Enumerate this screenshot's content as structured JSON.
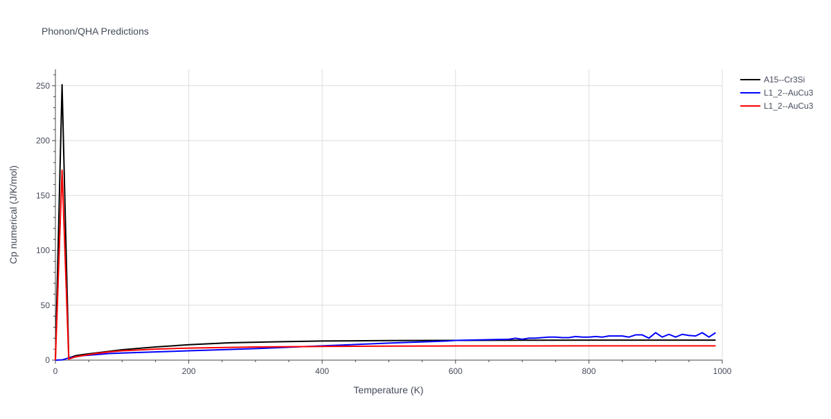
{
  "chart_data": {
    "type": "line",
    "title": "Phonon/QHA Predictions",
    "xlabel": "Temperature (K)",
    "ylabel": "Cp numerical (J/K/mol)",
    "xlim": [
      0,
      1000
    ],
    "ylim": [
      0,
      265
    ],
    "xticks": [
      0,
      200,
      400,
      600,
      800,
      1000
    ],
    "yticks": [
      0,
      50,
      100,
      150,
      200,
      250
    ],
    "grid": true,
    "legend_position": "top-right",
    "colors": {
      "grid": "#dddddd",
      "axis_text": "#444a5a",
      "title_text": "#444a5a"
    },
    "series": [
      {
        "name": "A15--Cr3Si",
        "color": "#000000",
        "x": [
          0,
          10,
          20,
          30,
          40,
          60,
          80,
          100,
          150,
          200,
          260,
          340,
          400,
          500,
          600,
          700,
          800,
          900,
          990
        ],
        "y": [
          0,
          251,
          2,
          4,
          5,
          6.5,
          8,
          9.5,
          12,
          14,
          15.8,
          16.8,
          17.4,
          17.8,
          18,
          18.1,
          18.2,
          18.2,
          18.2
        ]
      },
      {
        "name": "L1_2--AuCu3",
        "color": "#0000ff",
        "x": [
          0,
          10,
          20,
          30,
          40,
          60,
          80,
          100,
          150,
          200,
          300,
          400,
          500,
          590,
          600,
          680,
          690,
          700,
          710,
          720,
          730,
          740,
          750,
          760,
          770,
          780,
          790,
          800,
          810,
          820,
          830,
          840,
          850,
          860,
          870,
          880,
          890,
          900,
          910,
          920,
          930,
          940,
          950,
          960,
          970,
          980,
          990
        ],
        "y": [
          0,
          0.2,
          2,
          3,
          4,
          5,
          6,
          6.5,
          7.5,
          8.5,
          10.5,
          13,
          15.5,
          17.5,
          18,
          19,
          20,
          19,
          20,
          20,
          20.5,
          21,
          21,
          20.5,
          20.5,
          21.5,
          21,
          21,
          21.5,
          21,
          22,
          22,
          22,
          21,
          23,
          23,
          20,
          25,
          21,
          23.5,
          21,
          23.5,
          22.5,
          22,
          25,
          21,
          25
        ]
      },
      {
        "name": "L1_2--AuCu3",
        "color": "#ff0000",
        "x": [
          0,
          10,
          20,
          30,
          40,
          60,
          80,
          100,
          150,
          200,
          300,
          400,
          500,
          600,
          700,
          800,
          900,
          990
        ],
        "y": [
          0,
          173,
          1,
          3,
          4,
          6,
          7.5,
          8.5,
          10,
          11,
          12,
          12.5,
          12.8,
          12.9,
          12.9,
          13,
          13,
          13
        ]
      }
    ]
  }
}
